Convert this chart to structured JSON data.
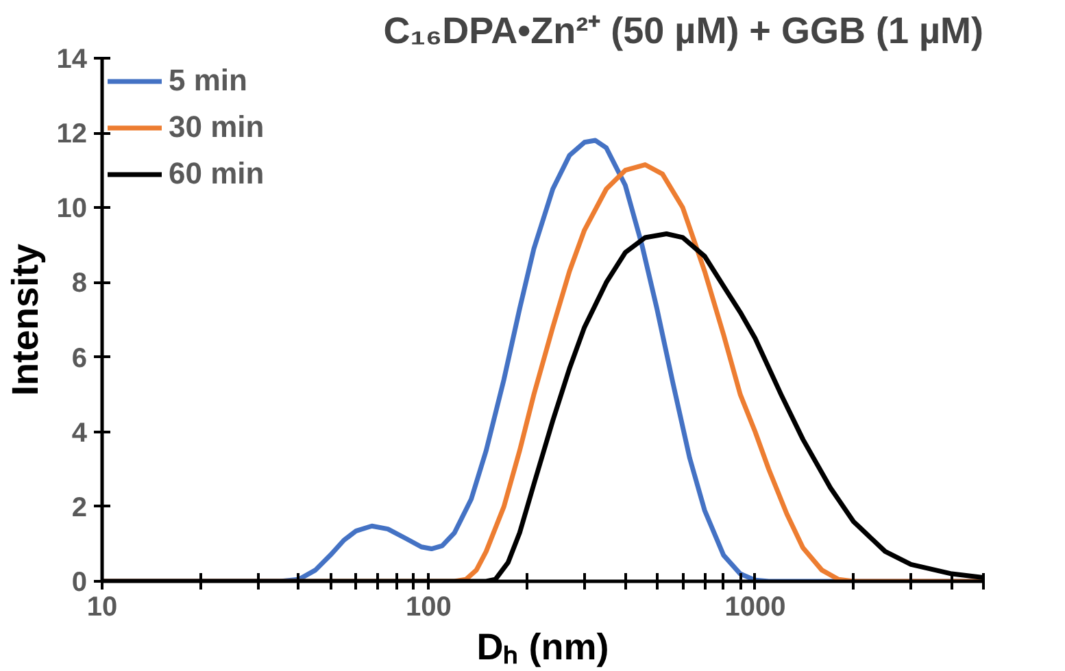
{
  "chart_data": {
    "type": "line",
    "title": "C₁₆DPA•Zn²⁺ (50 µM) + GGB (1 µM)",
    "xlabel": "Dₕ (nm)",
    "ylabel": "Intensity",
    "log": "x",
    "xlim": [
      10,
      5000
    ],
    "ylim": [
      0,
      14
    ],
    "xticks": [
      10,
      {
        "value": 20,
        "label": null
      },
      {
        "value": 30,
        "label": null
      },
      {
        "value": 40,
        "label": null
      },
      {
        "value": 50,
        "label": null
      },
      {
        "value": 60,
        "label": null
      },
      {
        "value": 70,
        "label": null
      },
      {
        "value": 80,
        "label": null
      },
      {
        "value": 90,
        "label": null
      },
      100,
      {
        "value": 200,
        "label": null
      },
      {
        "value": 300,
        "label": null
      },
      {
        "value": 400,
        "label": null
      },
      {
        "value": 500,
        "label": null
      },
      {
        "value": 600,
        "label": null
      },
      {
        "value": 700,
        "label": null
      },
      {
        "value": 800,
        "label": null
      },
      {
        "value": 900,
        "label": null
      },
      1000,
      {
        "value": 2000,
        "label": null
      },
      {
        "value": 3000,
        "label": null
      },
      {
        "value": 4000,
        "label": null
      },
      {
        "value": 5000,
        "label": null
      }
    ],
    "yticks": [
      0,
      2,
      4,
      6,
      8,
      10,
      12,
      14
    ],
    "grid": false,
    "legend": "top left",
    "marker": "none",
    "line_style": "solid",
    "series": [
      {
        "name": "5 min",
        "color": "#4472c4",
        "x": [
          10,
          35,
          40,
          45,
          50,
          55,
          60,
          67,
          75,
          85,
          95,
          102,
          110,
          120,
          135,
          150,
          170,
          190,
          210,
          240,
          270,
          300,
          324,
          350,
          400,
          450,
          500,
          560,
          630,
          700,
          800,
          900,
          1000,
          1100,
          5000
        ],
        "values": [
          0,
          0,
          0.05,
          0.3,
          0.7,
          1.1,
          1.35,
          1.48,
          1.4,
          1.15,
          0.92,
          0.87,
          0.95,
          1.3,
          2.2,
          3.5,
          5.4,
          7.3,
          8.9,
          10.5,
          11.4,
          11.75,
          11.8,
          11.6,
          10.6,
          9.0,
          7.3,
          5.3,
          3.3,
          1.9,
          0.7,
          0.2,
          0.03,
          0,
          0
        ]
      },
      {
        "name": "30 min",
        "color": "#ed7d31",
        "x": [
          10,
          120,
          130,
          140,
          150,
          170,
          190,
          210,
          240,
          270,
          300,
          350,
          400,
          460,
          520,
          600,
          700,
          800,
          900,
          1000,
          1100,
          1250,
          1400,
          1600,
          1800,
          2000,
          5000
        ],
        "values": [
          0,
          0,
          0.05,
          0.3,
          0.8,
          2.0,
          3.5,
          5.0,
          6.8,
          8.3,
          9.4,
          10.5,
          11.0,
          11.15,
          10.9,
          10.0,
          8.3,
          6.6,
          5.0,
          4.0,
          3.0,
          1.8,
          0.9,
          0.3,
          0.05,
          0,
          0
        ]
      },
      {
        "name": "60 min",
        "color": "#000000",
        "x": [
          10,
          150,
          160,
          175,
          190,
          210,
          240,
          270,
          300,
          350,
          400,
          460,
          535,
          600,
          700,
          800,
          900,
          1000,
          1200,
          1400,
          1700,
          2000,
          2500,
          3000,
          4000,
          5000
        ],
        "values": [
          0,
          0,
          0.05,
          0.5,
          1.3,
          2.6,
          4.3,
          5.7,
          6.8,
          8.0,
          8.8,
          9.2,
          9.3,
          9.2,
          8.7,
          7.9,
          7.2,
          6.5,
          5.0,
          3.8,
          2.5,
          1.6,
          0.8,
          0.45,
          0.2,
          0.1
        ]
      }
    ]
  }
}
